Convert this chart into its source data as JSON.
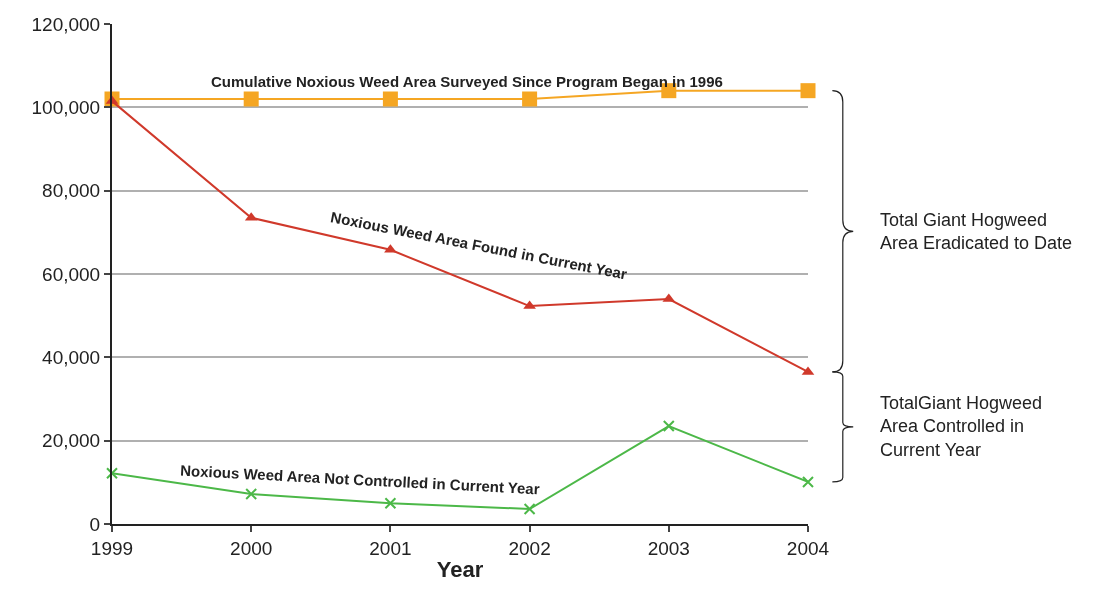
{
  "chart_data": {
    "type": "line",
    "xlabel": "Year",
    "x": [
      1999,
      2000,
      2001,
      2002,
      2003,
      2004
    ],
    "xlim": [
      1999,
      2004
    ],
    "xticks": [
      1999,
      2000,
      2001,
      2002,
      2003,
      2004
    ],
    "ylim": [
      0,
      120000
    ],
    "yticks": [
      {
        "value": 0,
        "label": "0"
      },
      {
        "value": 20000,
        "label": "20,000"
      },
      {
        "value": 40000,
        "label": "40,000"
      },
      {
        "value": 60000,
        "label": "60,000"
      },
      {
        "value": 80000,
        "label": "80,000"
      },
      {
        "value": 100000,
        "label": "100,000"
      },
      {
        "value": 120000,
        "label": "120,000"
      }
    ],
    "grid": "y",
    "legend": false,
    "series": [
      {
        "name": "Cumulative Noxious Weed Area Surveyed Since Program Began in 1996",
        "color": "#f5a623",
        "marker": "square",
        "values": [
          102000,
          102000,
          102000,
          102000,
          104000,
          104000
        ]
      },
      {
        "name": "Noxious Weed Area Found in Current Year",
        "color": "#d0392b",
        "marker": "triangle",
        "values": [
          101500,
          73500,
          65800,
          52300,
          54000,
          36500
        ]
      },
      {
        "name": "Noxious Weed Area Not Controlled in Current Year",
        "color": "#4cb848",
        "marker": "cross",
        "values": [
          12200,
          7200,
          5000,
          3600,
          23500,
          10100
        ]
      }
    ],
    "annotations": [
      "Total Giant Hogweed\nArea Eradicated to Date",
      "TotalGiant Hogweed\nArea Controlled in\nCurrent Year"
    ]
  }
}
